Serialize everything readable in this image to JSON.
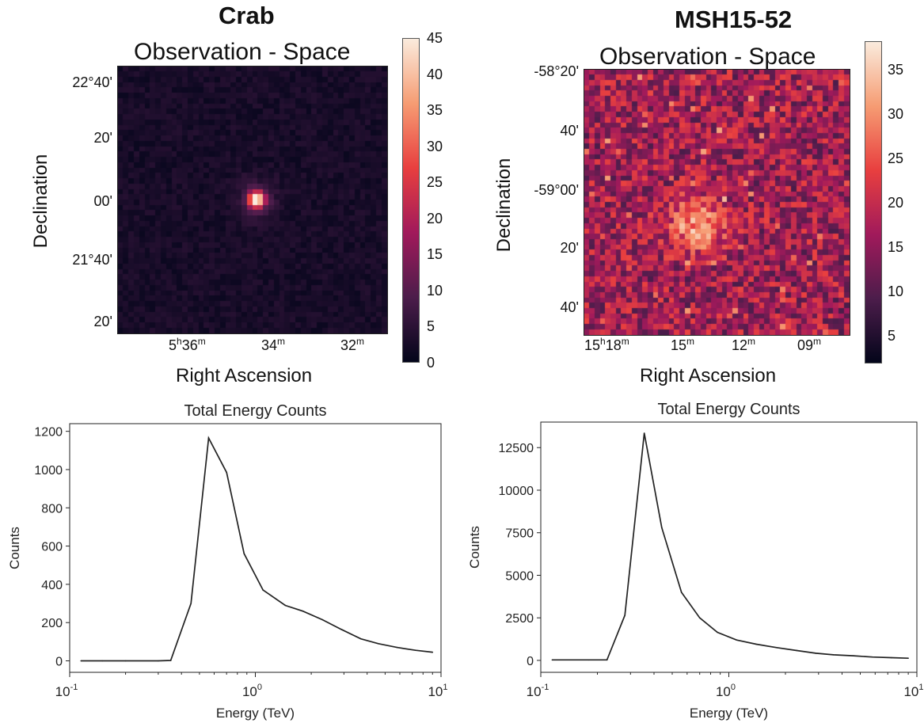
{
  "panels": {
    "crab_map": {
      "source_title": "Crab",
      "map_title": "Observation - Space",
      "xlabel": "Right Ascension",
      "ylabel": "Declination",
      "y_ticks": [
        "22°40'",
        "20'",
        "00'",
        "21°40'",
        "20'"
      ],
      "x_ticks": [
        {
          "h": "5",
          "hu": "h",
          "m": "36",
          "mu": "m"
        },
        {
          "h": "",
          "hu": "",
          "m": "34",
          "mu": "m"
        },
        {
          "h": "",
          "hu": "",
          "m": "32",
          "mu": "m"
        }
      ],
      "colorbar_ticks": [
        "45",
        "40",
        "35",
        "30",
        "25",
        "20",
        "15",
        "10",
        "5",
        "0"
      ]
    },
    "msh_map": {
      "source_title": "MSH15-52",
      "map_title": "Observation - Space",
      "xlabel": "Right Ascension",
      "ylabel": "Declination",
      "y_ticks": [
        "-58°20'",
        "40'",
        "-59°00'",
        "20'",
        "40'"
      ],
      "x_ticks": [
        {
          "h": "15",
          "hu": "h",
          "m": "18",
          "mu": "m"
        },
        {
          "h": "",
          "hu": "",
          "m": "15",
          "mu": "m"
        },
        {
          "h": "",
          "hu": "",
          "m": "12",
          "mu": "m"
        },
        {
          "h": "",
          "hu": "",
          "m": "09",
          "mu": "m"
        }
      ],
      "colorbar_ticks": [
        "35",
        "30",
        "25",
        "20",
        "15",
        "10",
        "5"
      ]
    }
  },
  "colors": {
    "colormap": [
      "#03051a",
      "#4c1d4b",
      "#a11a5b",
      "#e83f3f",
      "#f69c73",
      "#faebdd"
    ],
    "line": "#222222"
  },
  "chart_data": [
    {
      "type": "heatmap",
      "title": "Observation - Space",
      "suptitle": "Crab",
      "xlabel": "Right Ascension",
      "ylabel": "Declination",
      "colorbar_range": [
        0,
        45
      ],
      "colormap": "rocket",
      "description_of_values": "counts per spatial bin; background ~1-4 counts, bright point source at center peaking ~45"
    },
    {
      "type": "heatmap",
      "title": "Observation - Space",
      "suptitle": "MSH15-52",
      "xlabel": "Right Ascension",
      "ylabel": "Declination",
      "colorbar_range": [
        2,
        38
      ],
      "colormap": "rocket",
      "description_of_values": "counts per spatial bin; noisy background ~10-25 counts, extended emission left of center peaking ~38"
    },
    {
      "type": "line",
      "title": "Total Energy Counts",
      "xlabel": "Energy (TeV)",
      "ylabel": "Counts",
      "xscale": "log",
      "xlim": [
        0.1,
        10
      ],
      "ylim": [
        -60,
        1240
      ],
      "x_tick_labels": [
        "10",
        "10",
        "10"
      ],
      "x_tick_exponents": [
        "-1",
        "0",
        "1"
      ],
      "y_ticks": [
        0,
        200,
        400,
        600,
        800,
        1000,
        1200
      ],
      "x": [
        0.115,
        0.15,
        0.2,
        0.3,
        0.35,
        0.45,
        0.56,
        0.7,
        0.87,
        1.1,
        1.45,
        1.8,
        2.3,
        2.9,
        3.7,
        4.6,
        5.8,
        7.3,
        9.0
      ],
      "y": [
        0,
        0,
        0,
        0,
        2,
        300,
        1165,
        985,
        560,
        370,
        290,
        260,
        215,
        165,
        115,
        90,
        70,
        55,
        45
      ]
    },
    {
      "type": "line",
      "title": "Total Energy Counts",
      "xlabel": "Energy (TeV)",
      "ylabel": "Counts",
      "xscale": "log",
      "xlim": [
        0.1,
        10
      ],
      "ylim": [
        -700,
        14000
      ],
      "x_tick_labels": [
        "10",
        "10",
        "10"
      ],
      "x_tick_exponents": [
        "-1",
        "0",
        "1"
      ],
      "y_ticks": [
        0,
        2500,
        5000,
        7500,
        10000,
        12500
      ],
      "x": [
        0.115,
        0.18,
        0.225,
        0.28,
        0.355,
        0.44,
        0.56,
        0.7,
        0.87,
        1.1,
        1.4,
        1.8,
        2.3,
        2.9,
        3.6,
        4.6,
        5.8,
        7.3,
        9.0
      ],
      "y": [
        30,
        30,
        30,
        2650,
        13350,
        7800,
        4000,
        2500,
        1650,
        1200,
        950,
        750,
        580,
        420,
        330,
        270,
        200,
        160,
        130
      ]
    }
  ]
}
